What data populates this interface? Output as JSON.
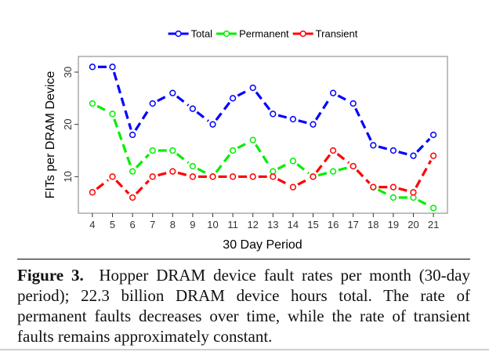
{
  "chart_data": {
    "type": "line",
    "xlabel": "30 Day Period",
    "ylabel": "FITs per DRAM Device",
    "x": [
      4,
      5,
      6,
      7,
      8,
      9,
      10,
      11,
      12,
      13,
      14,
      15,
      16,
      17,
      18,
      19,
      20,
      21
    ],
    "xlim": [
      3.3,
      21.7
    ],
    "ylim": [
      3,
      33
    ],
    "yticks": [
      10,
      20,
      30
    ],
    "grid": false,
    "legend_position": "top",
    "series": [
      {
        "name": "Total",
        "color": "#0000ff",
        "values": [
          31,
          31,
          18,
          24,
          26,
          23,
          20,
          25,
          27,
          22,
          21,
          20,
          26,
          24,
          16,
          15,
          14,
          18
        ]
      },
      {
        "name": "Permanent",
        "color": "#00ee00",
        "values": [
          24,
          22,
          11,
          15,
          15,
          12,
          10,
          15,
          17,
          11,
          13,
          10,
          11,
          12,
          8,
          6,
          6,
          4
        ]
      },
      {
        "name": "Transient",
        "color": "#ff0000",
        "values": [
          7,
          10,
          6,
          10,
          11,
          10,
          10,
          10,
          10,
          10,
          8,
          10,
          15,
          12,
          8,
          8,
          7,
          14
        ]
      }
    ]
  },
  "caption": {
    "label": "Figure 3.",
    "text": "Hopper DRAM device fault rates per month (30-day period); 22.3 billion DRAM device hours total. The rate of permanent faults decreases over time, while the rate of transient faults remains approximately constant."
  }
}
